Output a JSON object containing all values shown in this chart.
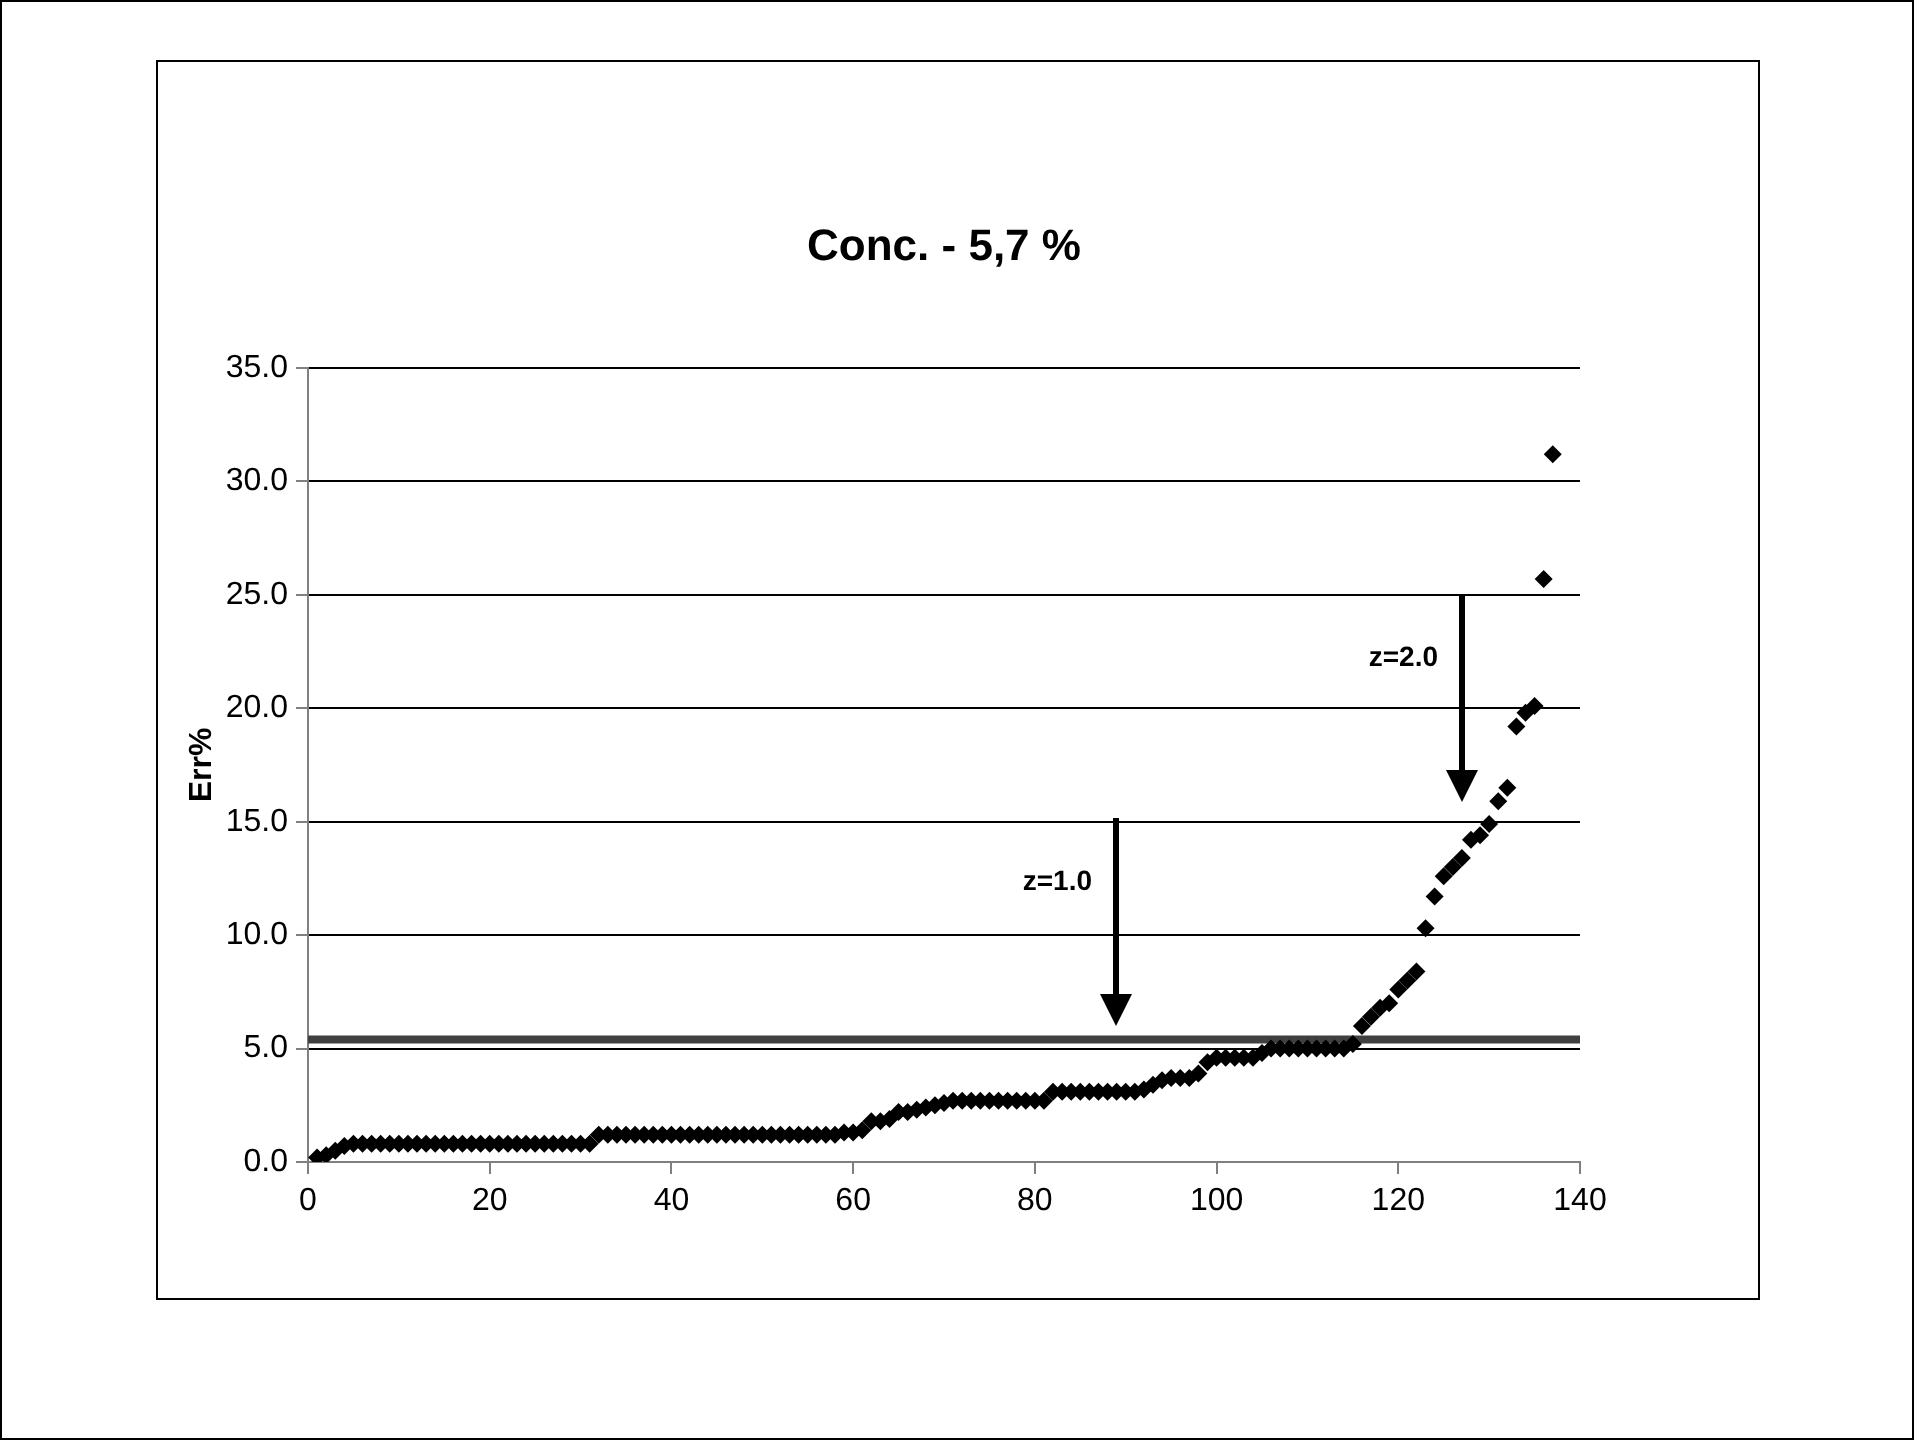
{
  "chart_data": {
    "type": "scatter",
    "title": "Conc. - 5,7 %",
    "ylabel": "Err%",
    "x": [
      1,
      2,
      3,
      4,
      5,
      6,
      7,
      8,
      9,
      10,
      11,
      12,
      13,
      14,
      15,
      16,
      17,
      18,
      19,
      20,
      21,
      22,
      23,
      24,
      25,
      26,
      27,
      28,
      29,
      30,
      31,
      32,
      33,
      34,
      35,
      36,
      37,
      38,
      39,
      40,
      41,
      42,
      43,
      44,
      45,
      46,
      47,
      48,
      49,
      50,
      51,
      52,
      53,
      54,
      55,
      56,
      57,
      58,
      59,
      60,
      61,
      62,
      63,
      64,
      65,
      66,
      67,
      68,
      69,
      70,
      71,
      72,
      73,
      74,
      75,
      76,
      77,
      78,
      79,
      80,
      81,
      82,
      83,
      84,
      85,
      86,
      87,
      88,
      89,
      90,
      91,
      92,
      93,
      94,
      95,
      96,
      97,
      98,
      99,
      100,
      101,
      102,
      103,
      104,
      105,
      106,
      107,
      108,
      109,
      110,
      111,
      112,
      113,
      114,
      115,
      116,
      117,
      118,
      119,
      120,
      121,
      122,
      123,
      124,
      125,
      126,
      127,
      128,
      129,
      130,
      131,
      132,
      133,
      134,
      135,
      136,
      137
    ],
    "series": [
      {
        "color": "#000000",
        "values": [
          0.2,
          0.3,
          0.5,
          0.7,
          0.8,
          0.8,
          0.8,
          0.8,
          0.8,
          0.8,
          0.8,
          0.8,
          0.8,
          0.8,
          0.8,
          0.8,
          0.8,
          0.8,
          0.8,
          0.8,
          0.8,
          0.8,
          0.8,
          0.8,
          0.8,
          0.8,
          0.8,
          0.8,
          0.8,
          0.8,
          0.8,
          1.2,
          1.2,
          1.2,
          1.2,
          1.2,
          1.2,
          1.2,
          1.2,
          1.2,
          1.2,
          1.2,
          1.2,
          1.2,
          1.2,
          1.2,
          1.2,
          1.2,
          1.2,
          1.2,
          1.2,
          1.2,
          1.2,
          1.2,
          1.2,
          1.2,
          1.2,
          1.2,
          1.3,
          1.3,
          1.4,
          1.8,
          1.8,
          1.9,
          2.2,
          2.2,
          2.3,
          2.4,
          2.5,
          2.6,
          2.7,
          2.7,
          2.7,
          2.7,
          2.7,
          2.7,
          2.7,
          2.7,
          2.7,
          2.7,
          2.7,
          3.1,
          3.1,
          3.1,
          3.1,
          3.1,
          3.1,
          3.1,
          3.1,
          3.1,
          3.1,
          3.2,
          3.4,
          3.6,
          3.7,
          3.7,
          3.7,
          3.9,
          4.4,
          4.6,
          4.6,
          4.6,
          4.6,
          4.6,
          4.8,
          5.0,
          5.0,
          5.0,
          5.0,
          5.0,
          5.0,
          5.0,
          5.0,
          5.0,
          5.2,
          6.0,
          6.4,
          6.8,
          7.0,
          7.6,
          8.0,
          8.4,
          10.3,
          11.7,
          12.6,
          13.0,
          13.4,
          14.2,
          14.4,
          14.9,
          15.9,
          16.5,
          19.2,
          19.8,
          20.1,
          25.7,
          31.2
        ]
      }
    ],
    "xlim": [
      0,
      140
    ],
    "xticks": [
      0,
      20,
      40,
      60,
      80,
      100,
      120,
      140
    ],
    "ylim": [
      0,
      35
    ],
    "yticks": [
      {
        "value": 0,
        "label": "0.0"
      },
      {
        "value": 5,
        "label": "5.0"
      },
      {
        "value": 10,
        "label": "10.0"
      },
      {
        "value": 15,
        "label": "15.0"
      },
      {
        "value": 20,
        "label": "20.0"
      },
      {
        "value": 25,
        "label": "25.0"
      },
      {
        "value": 30,
        "label": "30.0"
      },
      {
        "value": 35,
        "label": "35.0"
      }
    ],
    "grid": "y",
    "legend": false,
    "marker": "diamond",
    "ref_lines": [
      {
        "axis": "y",
        "value": 5.4,
        "color": "#404040"
      }
    ],
    "annotations": [
      "z=1.0",
      "z=2.0"
    ]
  }
}
